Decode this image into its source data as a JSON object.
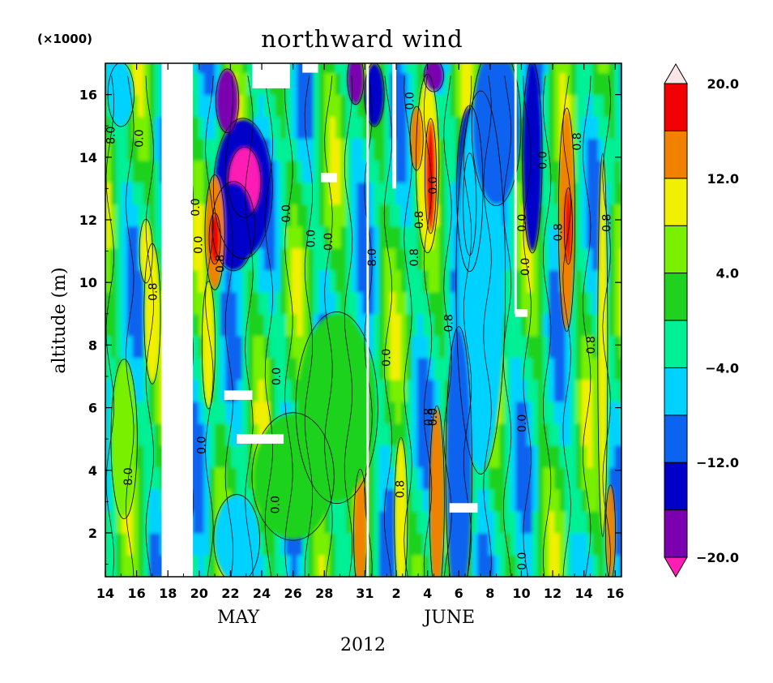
{
  "chart_data": {
    "type": "heatmap",
    "title": "northward wind",
    "ylabel": "altitude (m)",
    "y_multiplier": "(×1000)",
    "year_label": "2012",
    "month_labels": [
      {
        "text": "MAY",
        "day": 22.5
      },
      {
        "text": "JUNE",
        "day": 36.0
      }
    ],
    "x_domain": [
      14,
      47
    ],
    "y_domain": [
      0.6,
      17.0
    ],
    "x_ticks": [
      {
        "label": "14",
        "day": 14
      },
      {
        "label": "16",
        "day": 16
      },
      {
        "label": "18",
        "day": 18
      },
      {
        "label": "20",
        "day": 20
      },
      {
        "label": "22",
        "day": 22
      },
      {
        "label": "24",
        "day": 24
      },
      {
        "label": "26",
        "day": 26
      },
      {
        "label": "28",
        "day": 28
      },
      {
        "label": "31",
        "day": 30.6
      },
      {
        "label": "2",
        "day": 32.6
      },
      {
        "label": "4",
        "day": 34.6
      },
      {
        "label": "6",
        "day": 36.6
      },
      {
        "label": "8",
        "day": 38.6
      },
      {
        "label": "10",
        "day": 40.6
      },
      {
        "label": "12",
        "day": 42.6
      },
      {
        "label": "14",
        "day": 44.6
      },
      {
        "label": "16",
        "day": 46.6
      }
    ],
    "y_ticks": [
      {
        "label": "2",
        "value": 2
      },
      {
        "label": "4",
        "value": 4
      },
      {
        "label": "6",
        "value": 6
      },
      {
        "label": "8",
        "value": 8
      },
      {
        "label": "10",
        "value": 10
      },
      {
        "label": "12",
        "value": 12
      },
      {
        "label": "14",
        "value": 14
      },
      {
        "label": "16",
        "value": 16
      }
    ],
    "colorbar": {
      "levels": [
        -20,
        -16,
        -12,
        -8,
        -4,
        0,
        4,
        8,
        12,
        16,
        20
      ],
      "colors": [
        "#7a00b0",
        "#0000c8",
        "#0a64f0",
        "#00d2ff",
        "#00f096",
        "#1ed21e",
        "#78f000",
        "#f0f000",
        "#f08200",
        "#f00000"
      ],
      "under_color": "#ff1eb4",
      "over_color": "#fae6e6",
      "labels": [
        {
          "text": "20.0",
          "value": 20
        },
        {
          "text": "12.0",
          "value": 12
        },
        {
          "text": "4.0",
          "value": 4
        },
        {
          "text": "−4.0",
          "value": -4
        },
        {
          "text": "−12.0",
          "value": -12
        },
        {
          "text": "−20.0",
          "value": -20
        }
      ]
    },
    "contour_labels": [
      {
        "text": "8.0",
        "day": 14.6,
        "alt": 14.7
      },
      {
        "text": "0.0",
        "day": 16.4,
        "alt": 14.6
      },
      {
        "text": "0.8",
        "day": 17.3,
        "alt": 9.7
      },
      {
        "text": "8.0",
        "day": 15.7,
        "alt": 3.8
      },
      {
        "text": "0.0",
        "day": 20.0,
        "alt": 12.4
      },
      {
        "text": "0.0",
        "day": 20.2,
        "alt": 11.2
      },
      {
        "text": "0.8",
        "day": 21.6,
        "alt": 10.6
      },
      {
        "text": "0.0",
        "day": 20.4,
        "alt": 4.8
      },
      {
        "text": "0.0",
        "day": 25.8,
        "alt": 12.2
      },
      {
        "text": "0.0",
        "day": 27.4,
        "alt": 11.4
      },
      {
        "text": "0.0",
        "day": 28.5,
        "alt": 11.3
      },
      {
        "text": "0.0",
        "day": 25.2,
        "alt": 7.0
      },
      {
        "text": "0.0",
        "day": 25.1,
        "alt": 2.9
      },
      {
        "text": "8.0",
        "day": 31.3,
        "alt": 10.8
      },
      {
        "text": "0.0",
        "day": 32.2,
        "alt": 7.6
      },
      {
        "text": "0.8",
        "day": 33.1,
        "alt": 3.4
      },
      {
        "text": "0.0",
        "day": 33.7,
        "alt": 15.8
      },
      {
        "text": "0.0",
        "day": 35.2,
        "alt": 13.1
      },
      {
        "text": "0.8",
        "day": 34.3,
        "alt": 12.0
      },
      {
        "text": "0.8",
        "day": 34.0,
        "alt": 10.8
      },
      {
        "text": "0.8",
        "day": 36.2,
        "alt": 8.7
      },
      {
        "text": "0.8",
        "day": 34.9,
        "alt": 5.7
      },
      {
        "text": "0.0",
        "day": 35.2,
        "alt": 5.7
      },
      {
        "text": "0.0",
        "day": 40.9,
        "alt": 11.9
      },
      {
        "text": "0.0",
        "day": 42.2,
        "alt": 13.9
      },
      {
        "text": "0.0",
        "day": 41.1,
        "alt": 10.5
      },
      {
        "text": "0.0",
        "day": 40.9,
        "alt": 5.5
      },
      {
        "text": "0.0",
        "day": 40.9,
        "alt": 1.1
      },
      {
        "text": "0.8",
        "day": 44.4,
        "alt": 14.5
      },
      {
        "text": "0.8",
        "day": 43.2,
        "alt": 11.6
      },
      {
        "text": "0.8",
        "day": 45.3,
        "alt": 8.0
      },
      {
        "text": "0.8",
        "day": 46.3,
        "alt": 11.9
      }
    ],
    "missing_data_columns": [
      {
        "from_day": 17.6,
        "to_day": 19.6,
        "alt_from": 0.6,
        "alt_to": 17.0
      },
      {
        "from_day": 30.7,
        "to_day": 30.85,
        "alt_from": 0.6,
        "alt_to": 17.0
      },
      {
        "from_day": 32.35,
        "to_day": 32.6,
        "alt_from": 13.0,
        "alt_to": 17.0
      },
      {
        "from_day": 40.15,
        "to_day": 40.3,
        "alt_from": 9.0,
        "alt_to": 17.0
      }
    ],
    "missing_data_patches": [
      {
        "from_day": 23.4,
        "to_day": 25.8,
        "alt_from": 16.2,
        "alt_to": 17.0
      },
      {
        "from_day": 21.6,
        "to_day": 23.4,
        "alt_from": 6.25,
        "alt_to": 6.55
      },
      {
        "from_day": 22.4,
        "to_day": 25.4,
        "alt_from": 4.85,
        "alt_to": 5.15
      },
      {
        "from_day": 27.8,
        "to_day": 28.8,
        "alt_from": 13.2,
        "alt_to": 13.5
      },
      {
        "from_day": 36.0,
        "to_day": 37.8,
        "alt_from": 2.65,
        "alt_to": 2.95
      },
      {
        "from_day": 40.2,
        "to_day": 41.0,
        "alt_from": 8.9,
        "alt_to": 9.15
      },
      {
        "from_day": 26.6,
        "to_day": 27.6,
        "alt_from": 16.7,
        "alt_to": 17.0
      }
    ],
    "features": [
      {
        "day": 22.8,
        "alt": 13.0,
        "rx": 1.8,
        "ry": 2.2,
        "value": -16
      },
      {
        "day": 22.9,
        "alt": 13.2,
        "rx": 1.0,
        "ry": 1.1,
        "value": -22
      },
      {
        "day": 21.8,
        "alt": 15.8,
        "rx": 0.7,
        "ry": 1.0,
        "value": -17
      },
      {
        "day": 22.2,
        "alt": 11.8,
        "rx": 1.3,
        "ry": 1.4,
        "value": -14
      },
      {
        "day": 21.0,
        "alt": 11.6,
        "rx": 0.6,
        "ry": 1.8,
        "value": 15
      },
      {
        "day": 21.0,
        "alt": 11.4,
        "rx": 0.35,
        "ry": 0.8,
        "value": 18
      },
      {
        "day": 20.6,
        "alt": 8.0,
        "rx": 0.4,
        "ry": 2.0,
        "value": 9
      },
      {
        "day": 17.0,
        "alt": 9.0,
        "rx": 0.5,
        "ry": 2.2,
        "value": 9
      },
      {
        "day": 16.6,
        "alt": 11.0,
        "rx": 0.4,
        "ry": 1.0,
        "value": 10
      },
      {
        "day": 15.0,
        "alt": 16.0,
        "rx": 0.8,
        "ry": 1.0,
        "value": -7
      },
      {
        "day": 34.6,
        "alt": 13.8,
        "rx": 0.7,
        "ry": 2.8,
        "value": 11
      },
      {
        "day": 34.8,
        "alt": 13.4,
        "rx": 0.35,
        "ry": 1.8,
        "value": 17
      },
      {
        "day": 33.9,
        "alt": 14.6,
        "rx": 0.4,
        "ry": 1.0,
        "value": 13
      },
      {
        "day": 35.0,
        "alt": 16.6,
        "rx": 0.6,
        "ry": 0.5,
        "value": -18
      },
      {
        "day": 37.3,
        "alt": 13.0,
        "rx": 0.8,
        "ry": 2.6,
        "value": -13
      },
      {
        "day": 37.3,
        "alt": 12.5,
        "rx": 0.4,
        "ry": 1.6,
        "value": -18
      },
      {
        "day": 38.0,
        "alt": 10.0,
        "rx": 1.5,
        "ry": 6.0,
        "value": -6
      },
      {
        "day": 36.6,
        "alt": 4.0,
        "rx": 0.8,
        "ry": 4.5,
        "value": -11
      },
      {
        "day": 35.2,
        "alt": 3.0,
        "rx": 0.45,
        "ry": 3.0,
        "value": 13
      },
      {
        "day": 30.3,
        "alt": 2.0,
        "rx": 0.4,
        "ry": 2.0,
        "value": 14
      },
      {
        "day": 32.9,
        "alt": 2.5,
        "rx": 0.4,
        "ry": 2.5,
        "value": 10
      },
      {
        "day": 31.2,
        "alt": 16.0,
        "rx": 0.6,
        "ry": 1.0,
        "value": -15
      },
      {
        "day": 30.0,
        "alt": 16.5,
        "rx": 0.5,
        "ry": 0.8,
        "value": -18
      },
      {
        "day": 43.5,
        "alt": 12.0,
        "rx": 0.5,
        "ry": 3.5,
        "value": 14
      },
      {
        "day": 43.6,
        "alt": 11.8,
        "rx": 0.25,
        "ry": 1.2,
        "value": 18
      },
      {
        "day": 45.8,
        "alt": 8.0,
        "rx": 0.3,
        "ry": 6.0,
        "value": 11
      },
      {
        "day": 46.3,
        "alt": 2.0,
        "rx": 0.3,
        "ry": 1.5,
        "value": 14
      },
      {
        "day": 41.3,
        "alt": 14.0,
        "rx": 0.6,
        "ry": 3.0,
        "value": -13
      },
      {
        "day": 39.0,
        "alt": 15.0,
        "rx": 1.5,
        "ry": 2.5,
        "value": -11
      },
      {
        "day": 26.0,
        "alt": 3.8,
        "rx": 2.5,
        "ry": 2.0,
        "value": 0
      },
      {
        "day": 22.4,
        "alt": 1.8,
        "rx": 1.4,
        "ry": 1.4,
        "value": -6
      },
      {
        "day": 28.8,
        "alt": 6.0,
        "rx": 2.5,
        "ry": 3.0,
        "value": 2
      },
      {
        "day": 15.2,
        "alt": 5.0,
        "rx": 0.8,
        "ry": 2.5,
        "value": 6
      }
    ]
  }
}
